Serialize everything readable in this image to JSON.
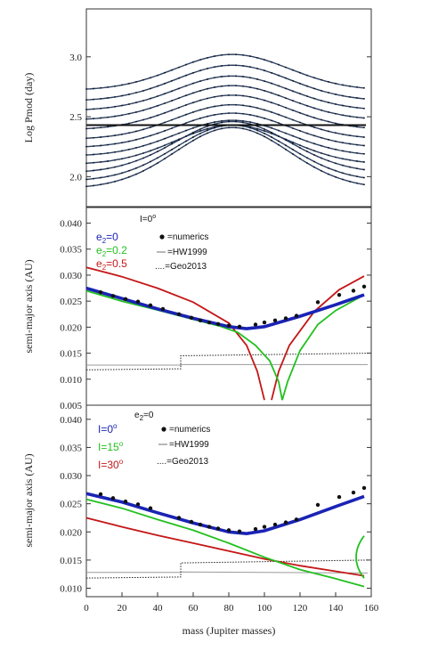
{
  "chart_data": [
    {
      "type": "line",
      "panel": "top",
      "ylabel": "Log Pmod (day)",
      "xlim": [
        0,
        160
      ],
      "ylim": [
        1.75,
        3.4
      ],
      "yticks": [
        2.0,
        2.5,
        3.0
      ],
      "ytick_labels": [
        "2.0",
        "2.5",
        "3.0"
      ],
      "hline": 2.43,
      "curve_colors": {
        "line": "#2b3f63",
        "dots": "#111111"
      },
      "curves": [
        {
          "peak": 3.02,
          "end": 2.72
        },
        {
          "peak": 2.93,
          "end": 2.63
        },
        {
          "peak": 2.84,
          "end": 2.55
        },
        {
          "peak": 2.76,
          "end": 2.47
        },
        {
          "peak": 2.68,
          "end": 2.39
        },
        {
          "peak": 2.6,
          "end": 2.31
        },
        {
          "peak": 2.53,
          "end": 2.24
        },
        {
          "peak": 2.47,
          "end": 2.17
        },
        {
          "peak": 2.43,
          "end": 2.1
        },
        {
          "peak": 2.46,
          "end": 2.03
        },
        {
          "peak": 2.43,
          "end": 1.96
        },
        {
          "peak": 2.41,
          "end": 1.9
        }
      ]
    },
    {
      "type": "line",
      "panel": "middle",
      "ylabel": "semi-major axis (AU)",
      "xlim": [
        0,
        160
      ],
      "ylim": [
        0.005,
        0.043
      ],
      "yticks": [
        0.005,
        0.01,
        0.015,
        0.02,
        0.025,
        0.03,
        0.035,
        0.04
      ],
      "ytick_labels": [
        "0.005",
        "0.010",
        "0.015",
        "0.020",
        "0.025",
        "0.030",
        "0.035",
        "0.040"
      ],
      "header": "I=0",
      "header_sup": "o",
      "legend_series": [
        {
          "label": "e",
          "sub": "2",
          "value": "=0",
          "color": "#1a23b5"
        },
        {
          "label": "e",
          "sub": "2",
          "value": "=0.2",
          "color": "#22c01f"
        },
        {
          "label": "e",
          "sub": "2",
          "value": "=0.5",
          "color": "#c41616"
        }
      ],
      "legend_methods": [
        "=numerics",
        "=HW1999",
        "....=Geo2013"
      ],
      "numerics": [
        [
          8,
          0.0267
        ],
        [
          15,
          0.026
        ],
        [
          22,
          0.0254
        ],
        [
          29,
          0.0249
        ],
        [
          36,
          0.0242
        ],
        [
          43,
          0.0235
        ],
        [
          52,
          0.0225
        ],
        [
          59,
          0.0218
        ],
        [
          64,
          0.0213
        ],
        [
          69,
          0.0209
        ],
        [
          74,
          0.0206
        ],
        [
          80,
          0.0203
        ],
        [
          86,
          0.0201
        ],
        [
          95,
          0.0205
        ],
        [
          100,
          0.0209
        ],
        [
          106,
          0.0213
        ],
        [
          112,
          0.0217
        ],
        [
          118,
          0.0222
        ],
        [
          130,
          0.0248
        ],
        [
          142,
          0.0262
        ],
        [
          150,
          0.027
        ],
        [
          156,
          0.0278
        ]
      ],
      "hw1999": [
        [
          0,
          0.0127
        ],
        [
          53,
          0.0127
        ],
        [
          53,
          0.0128
        ],
        [
          158,
          0.0128
        ]
      ],
      "geo2013": [
        [
          0,
          0.0118
        ],
        [
          53,
          0.012
        ],
        [
          53,
          0.0145
        ],
        [
          158,
          0.015
        ]
      ],
      "e0": [
        [
          0,
          0.0275
        ],
        [
          20,
          0.0255
        ],
        [
          40,
          0.0235
        ],
        [
          60,
          0.0217
        ],
        [
          80,
          0.0201
        ],
        [
          90,
          0.0197
        ],
        [
          100,
          0.0201
        ],
        [
          120,
          0.0221
        ],
        [
          140,
          0.0243
        ],
        [
          156,
          0.0262
        ]
      ],
      "e02_left": [
        [
          0,
          0.027
        ],
        [
          20,
          0.025
        ],
        [
          40,
          0.0233
        ],
        [
          60,
          0.0215
        ],
        [
          75,
          0.0202
        ],
        [
          85,
          0.019
        ],
        [
          95,
          0.0165
        ],
        [
          103,
          0.0135
        ],
        [
          108,
          0.0095
        ],
        [
          110,
          0.006
        ]
      ],
      "e02_right": [
        [
          110,
          0.006
        ],
        [
          113,
          0.0095
        ],
        [
          120,
          0.0155
        ],
        [
          130,
          0.0205
        ],
        [
          140,
          0.0232
        ],
        [
          156,
          0.0262
        ]
      ],
      "e05_left": [
        [
          0,
          0.0315
        ],
        [
          20,
          0.0297
        ],
        [
          40,
          0.0275
        ],
        [
          60,
          0.0248
        ],
        [
          80,
          0.0208
        ],
        [
          90,
          0.0165
        ],
        [
          96,
          0.0115
        ],
        [
          100,
          0.006
        ]
      ],
      "e05_right": [
        [
          104,
          0.006
        ],
        [
          108,
          0.0115
        ],
        [
          114,
          0.0165
        ],
        [
          128,
          0.023
        ],
        [
          142,
          0.0272
        ],
        [
          156,
          0.0298
        ]
      ]
    },
    {
      "type": "line",
      "panel": "bottom",
      "xlabel": "mass (Jupiter masses)",
      "ylabel": "semi-major axis (AU)",
      "xlim": [
        0,
        160
      ],
      "ylim": [
        0.0085,
        0.0425
      ],
      "xticks": [
        0,
        20,
        40,
        60,
        80,
        100,
        120,
        140,
        160
      ],
      "xtick_labels": [
        "0",
        "20",
        "40",
        "60",
        "80",
        "100",
        "120",
        "140",
        "160"
      ],
      "yticks": [
        0.01,
        0.015,
        0.02,
        0.025,
        0.03,
        0.035,
        0.04
      ],
      "ytick_labels": [
        "0.010",
        "0.015",
        "0.020",
        "0.025",
        "0.030",
        "0.035",
        "0.040"
      ],
      "header": "e",
      "header_sub": "2",
      "header_value": "=0",
      "legend_series": [
        {
          "label": "I=0",
          "sup": "o",
          "color": "#1a23b5"
        },
        {
          "label": "I=15",
          "sup": "o",
          "color": "#22c01f"
        },
        {
          "label": "I=30",
          "sup": "o",
          "color": "#c41616"
        }
      ],
      "legend_methods": [
        "=numerics",
        "=HW1999",
        "....=Geo2013"
      ],
      "numerics": [
        [
          8,
          0.0267
        ],
        [
          15,
          0.026
        ],
        [
          22,
          0.0254
        ],
        [
          29,
          0.0249
        ],
        [
          36,
          0.0242
        ],
        [
          52,
          0.0225
        ],
        [
          59,
          0.0218
        ],
        [
          64,
          0.0213
        ],
        [
          69,
          0.0209
        ],
        [
          74,
          0.0206
        ],
        [
          80,
          0.0203
        ],
        [
          86,
          0.0201
        ],
        [
          95,
          0.0205
        ],
        [
          100,
          0.0209
        ],
        [
          106,
          0.0213
        ],
        [
          112,
          0.0217
        ],
        [
          118,
          0.0222
        ],
        [
          130,
          0.0248
        ],
        [
          142,
          0.0262
        ],
        [
          150,
          0.027
        ],
        [
          156,
          0.0278
        ]
      ],
      "hw1999": [
        [
          0,
          0.0128
        ],
        [
          53,
          0.0128
        ],
        [
          53,
          0.0129
        ],
        [
          158,
          0.0127
        ]
      ],
      "geo2013": [
        [
          0,
          0.0118
        ],
        [
          53,
          0.012
        ],
        [
          53,
          0.0145
        ],
        [
          158,
          0.015
        ]
      ],
      "i0": [
        [
          0,
          0.0268
        ],
        [
          20,
          0.0253
        ],
        [
          40,
          0.0234
        ],
        [
          60,
          0.0216
        ],
        [
          80,
          0.02
        ],
        [
          90,
          0.0197
        ],
        [
          100,
          0.0202
        ],
        [
          120,
          0.0222
        ],
        [
          140,
          0.0245
        ],
        [
          156,
          0.0263
        ]
      ],
      "i15": [
        [
          0,
          0.0258
        ],
        [
          20,
          0.0242
        ],
        [
          40,
          0.0222
        ],
        [
          60,
          0.0203
        ],
        [
          80,
          0.018
        ],
        [
          100,
          0.0155
        ],
        [
          120,
          0.0133
        ],
        [
          140,
          0.0117
        ],
        [
          156,
          0.0103
        ]
      ],
      "i15_loop": [
        [
          156,
          0.0118
        ],
        [
          150,
          0.0142
        ],
        [
          150,
          0.0168
        ],
        [
          156,
          0.0193
        ]
      ],
      "i30": [
        [
          0,
          0.0225
        ],
        [
          20,
          0.0209
        ],
        [
          40,
          0.0194
        ],
        [
          60,
          0.018
        ],
        [
          80,
          0.0166
        ],
        [
          100,
          0.0152
        ],
        [
          120,
          0.014
        ],
        [
          140,
          0.013
        ],
        [
          156,
          0.0122
        ]
      ]
    }
  ]
}
